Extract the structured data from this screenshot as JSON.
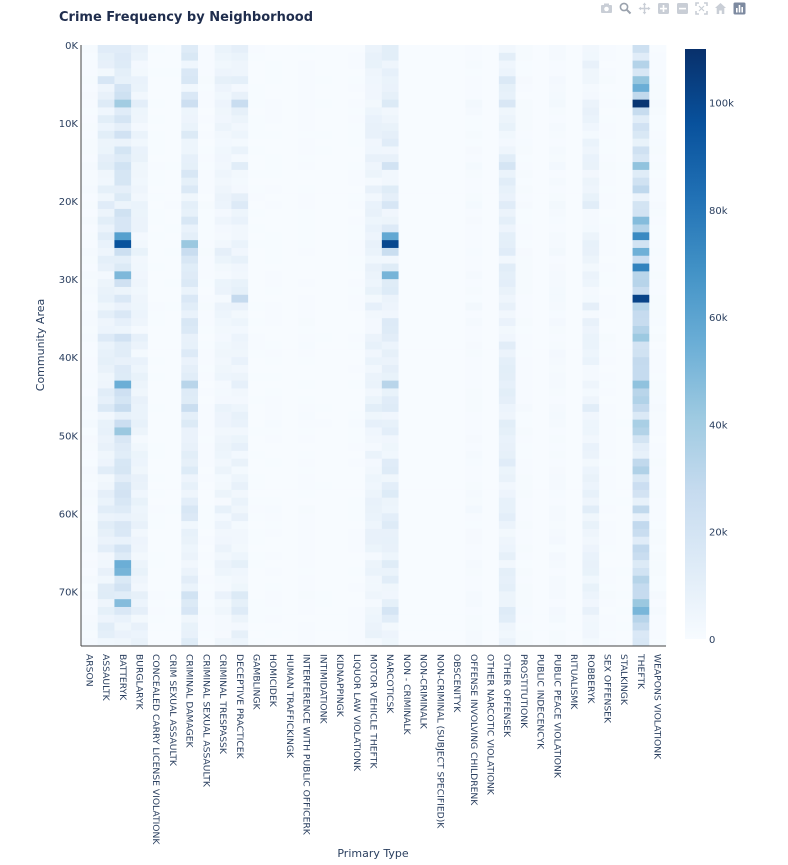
{
  "chart_data": {
    "type": "heatmap",
    "title": "Crime Frequency by Neighborhood",
    "xlabel": "Primary Type",
    "ylabel": "Community Area",
    "categories": [
      "ARSON",
      "ASSAULTK",
      "BATTERYK",
      "BURGLARYK",
      "CONCEALED CARRY LICENSE VIOLATIONK",
      "CRIM SEXUAL ASSAULTK",
      "CRIMINAL DAMAGEK",
      "CRIMINAL SEXUAL ASSAULTK",
      "CRIMINAL TRESPASSK",
      "DECEPTIVE PRACTICEK",
      "GAMBLINGK",
      "HOMICIDEK",
      "HUMAN TRAFFICKINGK",
      "INTERFERENCE WITH PUBLIC OFFICERK",
      "INTIMIDATIONK",
      "KIDNAPPINGK",
      "LIQUOR LAW VIOLATIONK",
      "MOTOR VEHICLE THEFTK",
      "NARCOTICSK",
      "NON - CRIMINALK",
      "NON-CRIMINALK",
      "NON-CRIMINAL (SUBJECT SPECIFIED)K",
      "OBSCENITYK",
      "OFFENSE INVOLVING CHILDRENK",
      "OTHER NARCOTIC VIOLATIONK",
      "OTHER OFFENSEK",
      "PROSTITUTIONK",
      "PUBLIC INDECENCYK",
      "PUBLIC PEACE VIOLATIONK",
      "RITUALISMK",
      "ROBBERYK",
      "SEX OFFENSEK",
      "STALKINGK",
      "THEFTK",
      "WEAPONS VIOLATIONK"
    ],
    "y_ticks": [
      "0K",
      "10K",
      "20K",
      "30K",
      "40K",
      "50K",
      "60K",
      "70K"
    ],
    "y_tick_values": [
      0,
      10000,
      20000,
      30000,
      40000,
      50000,
      60000,
      70000
    ],
    "ylim": [
      0,
      77000
    ],
    "y_reversed": true,
    "colorbar": {
      "ticks": [
        "0",
        "20k",
        "40k",
        "60k",
        "80k",
        "100k"
      ],
      "tick_values": [
        0,
        20000,
        40000,
        60000,
        80000,
        100000
      ],
      "range": [
        0,
        110000
      ]
    },
    "colorscale": [
      "#f7fbff",
      "#deebf7",
      "#c6dbef",
      "#9ecae1",
      "#6baed6",
      "#4292c6",
      "#2171b5",
      "#08519c",
      "#08306b"
    ],
    "rows": 77,
    "category_levels": [
      1.2,
      9,
      16,
      6,
      0.3,
      0.2,
      12,
      0.5,
      5,
      7,
      0.3,
      0.4,
      0.1,
      0.6,
      0.2,
      0.1,
      0.4,
      6,
      10,
      0.1,
      0.1,
      0.1,
      0.1,
      1.2,
      0.1,
      9,
      0.8,
      0.1,
      1.5,
      0.1,
      6,
      0.5,
      0.2,
      25,
      0.8
    ],
    "hotspots": [
      {
        "category": "BATTERYK",
        "row": 7,
        "value": 40000
      },
      {
        "category": "BATTERYK",
        "row": 24,
        "value": 62000
      },
      {
        "category": "BATTERYK",
        "row": 25,
        "value": 96000
      },
      {
        "category": "BATTERYK",
        "row": 29,
        "value": 50000
      },
      {
        "category": "BATTERYK",
        "row": 43,
        "value": 55000
      },
      {
        "category": "BATTERYK",
        "row": 49,
        "value": 42000
      },
      {
        "category": "BATTERYK",
        "row": 66,
        "value": 55000
      },
      {
        "category": "BATTERYK",
        "row": 67,
        "value": 52000
      },
      {
        "category": "BATTERYK",
        "row": 71,
        "value": 48000
      },
      {
        "category": "CRIMINAL DAMAGEK",
        "row": 25,
        "value": 42000
      },
      {
        "category": "CRIMINAL DAMAGEK",
        "row": 43,
        "value": 32000
      },
      {
        "category": "DECEPTIVE PRACTICEK",
        "row": 32,
        "value": 28000
      },
      {
        "category": "DECEPTIVE PRACTICEK",
        "row": 7,
        "value": 26000
      },
      {
        "category": "NARCOTICSK",
        "row": 24,
        "value": 58000
      },
      {
        "category": "NARCOTICSK",
        "row": 25,
        "value": 100000
      },
      {
        "category": "NARCOTICSK",
        "row": 29,
        "value": 52000
      },
      {
        "category": "NARCOTICSK",
        "row": 43,
        "value": 32000
      },
      {
        "category": "THEFTK",
        "row": 5,
        "value": 55000
      },
      {
        "category": "THEFTK",
        "row": 7,
        "value": 108000
      },
      {
        "category": "THEFTK",
        "row": 22,
        "value": 48000
      },
      {
        "category": "THEFTK",
        "row": 24,
        "value": 72000
      },
      {
        "category": "THEFTK",
        "row": 28,
        "value": 75000
      },
      {
        "category": "THEFTK",
        "row": 32,
        "value": 102000
      },
      {
        "category": "THEFTK",
        "row": 43,
        "value": 45000
      },
      {
        "category": "THEFTK",
        "row": 71,
        "value": 42000
      }
    ]
  },
  "modebar": {
    "buttons": [
      "camera-icon",
      "zoom-icon",
      "pan-icon",
      "zoom-in-icon",
      "zoom-out-icon",
      "autoscale-icon",
      "home-icon",
      "plotly-logo-icon"
    ]
  }
}
